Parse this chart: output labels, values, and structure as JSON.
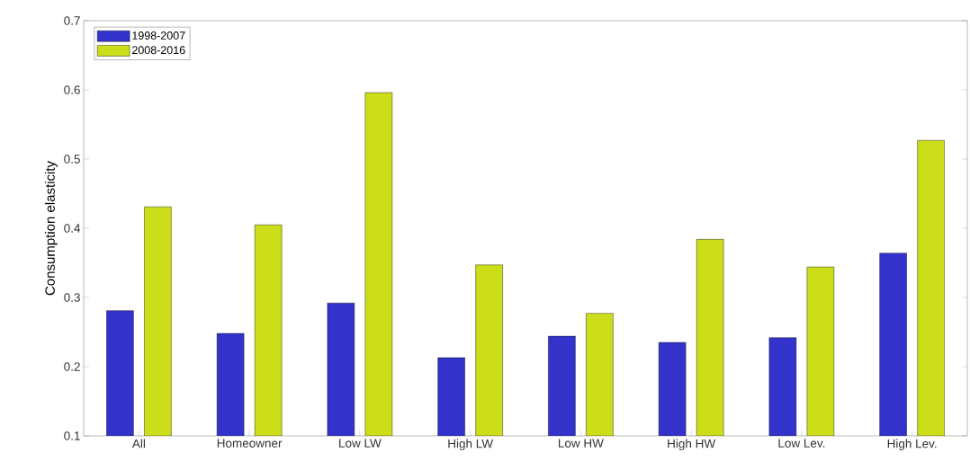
{
  "chart_data": {
    "type": "bar",
    "ylabel": "Consumption elasticity",
    "categories": [
      "All",
      "Homeowner",
      "Low LW",
      "High LW",
      "Low HW",
      "High HW",
      "Low Lev.",
      "High Lev."
    ],
    "series": [
      {
        "name": "1998-2007",
        "color": "#3333cc",
        "values": [
          0.281,
          0.248,
          0.292,
          0.213,
          0.244,
          0.235,
          0.242,
          0.364
        ]
      },
      {
        "name": "2008-2016",
        "color": "#ccdd1a",
        "values": [
          0.431,
          0.405,
          0.596,
          0.347,
          0.277,
          0.384,
          0.344,
          0.527
        ]
      }
    ],
    "ylim": [
      0.1,
      0.7
    ],
    "yticks": [
      0.1,
      0.2,
      0.3,
      0.4,
      0.5,
      0.6,
      0.7
    ],
    "legend": "top left"
  }
}
